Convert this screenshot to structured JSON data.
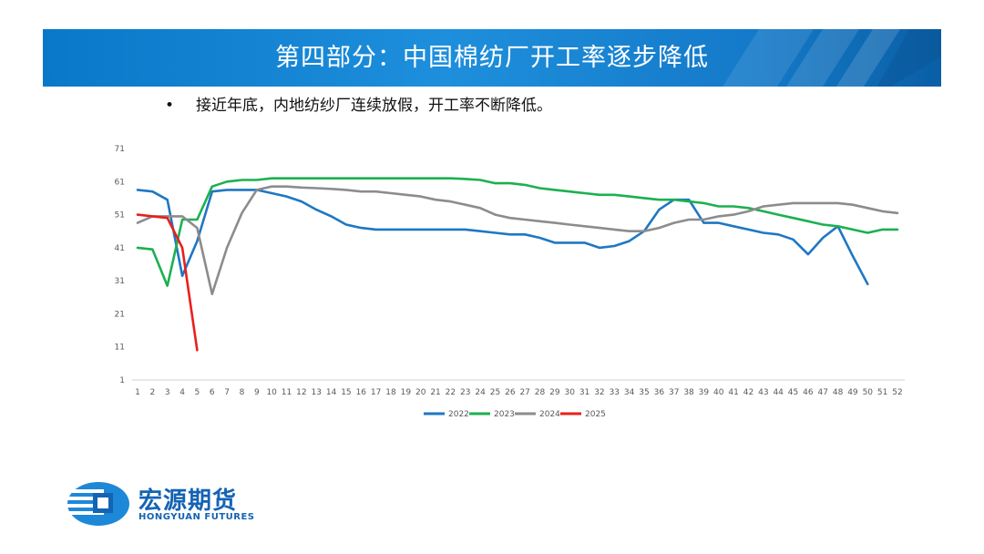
{
  "slide": {
    "title": "第四部分：中国棉纺厂开工率逐步降低",
    "bullet": "•",
    "bullet_text": "接近年底，内地纺纱厂连续放假，开工率不断降低。"
  },
  "logo": {
    "name_cn": "宏源期货",
    "name_en": "HONGYUAN FUTURES"
  },
  "chart_data": {
    "type": "line",
    "title": "",
    "xlabel": "",
    "ylabel": "",
    "x": [
      1,
      2,
      3,
      4,
      5,
      6,
      7,
      8,
      9,
      10,
      11,
      12,
      13,
      14,
      15,
      16,
      17,
      18,
      19,
      20,
      21,
      22,
      23,
      24,
      25,
      26,
      27,
      28,
      29,
      30,
      31,
      32,
      33,
      34,
      35,
      36,
      37,
      38,
      39,
      40,
      41,
      42,
      43,
      44,
      45,
      46,
      47,
      48,
      49,
      50,
      51,
      52
    ],
    "xlim": [
      1,
      52
    ],
    "ylim": [
      1,
      71
    ],
    "yticks": [
      1,
      11,
      21,
      31,
      41,
      51,
      61,
      71
    ],
    "grid": "y-axis baseline only",
    "legend": "bottom",
    "series": [
      {
        "name": "2022",
        "color": "#1f77c4",
        "values": [
          58.5,
          58,
          55.5,
          32.5,
          43,
          58,
          58.5,
          58.5,
          58.5,
          57.5,
          56.5,
          55,
          52.5,
          50.5,
          48,
          47,
          46.5,
          46.5,
          46.5,
          46.5,
          46.5,
          46.5,
          46.5,
          46,
          45.5,
          45,
          45,
          44,
          42.5,
          42.5,
          42.5,
          41,
          41.5,
          43,
          46,
          52.5,
          55.5,
          55.5,
          48.5,
          48.5,
          47.5,
          46.5,
          45.5,
          45,
          43.5,
          39,
          44,
          47.5,
          38.5,
          30,
          null,
          null
        ]
      },
      {
        "name": "2023",
        "color": "#1cb050",
        "values": [
          41,
          40.5,
          29.5,
          49.5,
          49.5,
          59.5,
          61,
          61.5,
          61.5,
          62,
          62,
          62,
          62,
          62,
          62,
          62,
          62,
          62,
          62,
          62,
          62,
          62,
          61.8,
          61.5,
          60.5,
          60.5,
          60,
          59,
          58.5,
          58,
          57.5,
          57,
          57,
          56.5,
          56,
          55.5,
          55.5,
          55,
          54.5,
          53.5,
          53.5,
          53,
          52,
          51,
          50,
          49,
          48,
          47.5,
          46.5,
          45.5,
          46.5,
          46.5
        ]
      },
      {
        "name": "2024",
        "color": "#8c8c8c",
        "values": [
          48.5,
          50.5,
          50.5,
          50.5,
          47,
          27,
          41,
          51.5,
          58.5,
          59.5,
          59.5,
          59.2,
          59,
          58.8,
          58.5,
          58,
          58,
          57.5,
          57,
          56.5,
          55.5,
          55,
          54,
          53,
          51,
          50,
          49.5,
          49,
          48.5,
          48,
          47.5,
          47,
          46.5,
          46,
          46,
          47,
          48.5,
          49.5,
          49.5,
          50.5,
          51,
          52,
          53.5,
          54,
          54.5,
          54.5,
          54.5,
          54.5,
          54,
          53,
          52,
          51.5
        ]
      },
      {
        "name": "2025",
        "color": "#e8201c",
        "values": [
          51,
          50.5,
          50,
          41,
          10,
          null,
          null,
          null,
          null,
          null,
          null,
          null,
          null,
          null,
          null,
          null,
          null,
          null,
          null,
          null,
          null,
          null,
          null,
          null,
          null,
          null,
          null,
          null,
          null,
          null,
          null,
          null,
          null,
          null,
          null,
          null,
          null,
          null,
          null,
          null,
          null,
          null,
          null,
          null,
          null,
          null,
          null,
          null,
          null,
          null,
          null,
          null
        ]
      }
    ]
  }
}
